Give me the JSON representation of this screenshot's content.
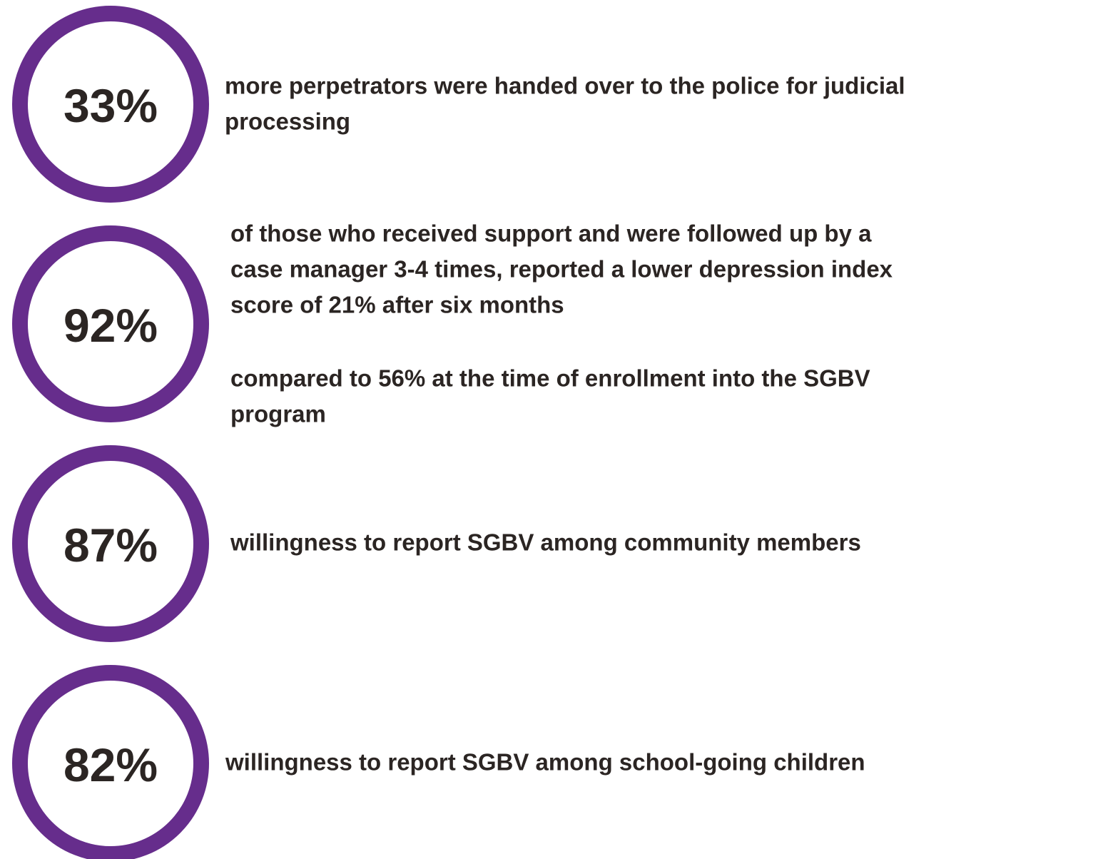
{
  "items": [
    {
      "stat": "33%",
      "paragraphs": [
        [
          "more perpetrators were handed over to the police for judicial",
          "processing"
        ]
      ]
    },
    {
      "stat": "92%",
      "paragraphs": [
        [
          "of those who received support and were followed up by a",
          "case manager 3-4 times, reported a lower depression index",
          "score of 21% after six months"
        ],
        [
          "compared to 56% at the time of enrollment into the SGBV",
          "program"
        ]
      ]
    },
    {
      "stat": "87%",
      "paragraphs": [
        [
          "willingness to report SGBV among community members"
        ]
      ]
    },
    {
      "stat": "82%",
      "paragraphs": [
        [
          "willingness to report SGBV among school-going children"
        ]
      ]
    }
  ]
}
